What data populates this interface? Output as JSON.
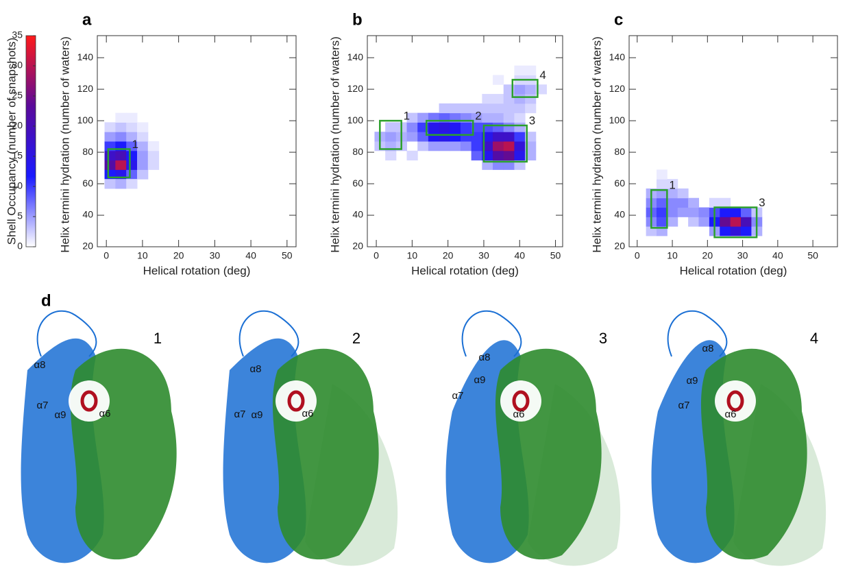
{
  "chart_data": [
    {
      "type": "heatmap",
      "title": "a",
      "xlabel": "Helical rotation (deg)",
      "ylabel": "Helix termini hydration (number of waters)",
      "xlim": [
        -2.5,
        52.5
      ],
      "ylim": [
        20,
        154
      ],
      "xticks": [
        0,
        10,
        20,
        30,
        40,
        50
      ],
      "yticks": [
        20,
        40,
        60,
        80,
        100,
        120,
        140
      ],
      "x": [
        1,
        4,
        7,
        10,
        1,
        4,
        7,
        10,
        13,
        1,
        4,
        7,
        10,
        13,
        1,
        4,
        7,
        10,
        13,
        1,
        4,
        7,
        10,
        1,
        4,
        7,
        10,
        4,
        7,
        1,
        4,
        7
      ],
      "y": [
        66,
        66,
        66,
        66,
        72,
        72,
        72,
        72,
        72,
        78,
        78,
        78,
        78,
        78,
        84,
        84,
        84,
        84,
        84,
        90,
        90,
        90,
        90,
        96,
        96,
        96,
        96,
        102,
        102,
        60,
        60,
        60
      ],
      "values": [
        12,
        14,
        8,
        3,
        22,
        30,
        14,
        5,
        2,
        18,
        20,
        12,
        5,
        2,
        10,
        12,
        8,
        4,
        1,
        5,
        6,
        4,
        2,
        2,
        3,
        2,
        1,
        1,
        1,
        3,
        4,
        2
      ],
      "box_color": "#2ca02c",
      "boxes": [
        {
          "label": "1",
          "x": [
            0.5,
            6.5
          ],
          "y": [
            64,
            82
          ]
        }
      ]
    },
    {
      "type": "heatmap",
      "title": "b",
      "xlabel": "Helical rotation (deg)",
      "ylabel": "Helix termini hydration (number of waters)",
      "xlim": [
        -2.5,
        52
      ],
      "ylim": [
        20,
        154
      ],
      "xticks": [
        0,
        10,
        20,
        30,
        40,
        50
      ],
      "yticks": [
        20,
        40,
        60,
        80,
        100,
        120,
        140
      ],
      "x": [
        31,
        34,
        37,
        40,
        4,
        10,
        28,
        31,
        34,
        37,
        40,
        43,
        1,
        4,
        7,
        13,
        16,
        19,
        22,
        25,
        28,
        31,
        34,
        37,
        40,
        43,
        1,
        4,
        7,
        10,
        13,
        16,
        19,
        22,
        25,
        28,
        31,
        34,
        37,
        40,
        43,
        4,
        7,
        10,
        13,
        16,
        19,
        22,
        25,
        28,
        31,
        34,
        37,
        40,
        10,
        13,
        16,
        19,
        22,
        25,
        28,
        31,
        34,
        37,
        40,
        19,
        22,
        25,
        28,
        31,
        34,
        37,
        40,
        43,
        31,
        34,
        37,
        40,
        43,
        37,
        40,
        43,
        46,
        34,
        40,
        43,
        40,
        43
      ],
      "y": [
        72,
        72,
        72,
        72,
        78,
        78,
        78,
        78,
        78,
        78,
        78,
        78,
        84,
        84,
        84,
        84,
        84,
        84,
        84,
        84,
        84,
        84,
        84,
        84,
        84,
        84,
        90,
        90,
        90,
        90,
        90,
        90,
        90,
        90,
        90,
        90,
        90,
        90,
        90,
        90,
        90,
        96,
        96,
        96,
        96,
        96,
        96,
        96,
        96,
        96,
        96,
        96,
        96,
        96,
        102,
        102,
        102,
        102,
        102,
        102,
        102,
        102,
        102,
        102,
        102,
        108,
        108,
        108,
        108,
        108,
        108,
        108,
        108,
        108,
        114,
        114,
        114,
        114,
        114,
        120,
        120,
        120,
        120,
        126,
        126,
        126,
        132,
        132
      ],
      "values": [
        4,
        6,
        6,
        3,
        2,
        2,
        8,
        14,
        22,
        24,
        14,
        4,
        3,
        4,
        3,
        3,
        5,
        5,
        5,
        6,
        10,
        18,
        28,
        30,
        16,
        4,
        4,
        5,
        4,
        5,
        8,
        13,
        14,
        12,
        10,
        10,
        14,
        18,
        18,
        10,
        3,
        3,
        3,
        6,
        10,
        14,
        15,
        13,
        10,
        9,
        9,
        8,
        6,
        4,
        3,
        5,
        7,
        8,
        7,
        6,
        5,
        4,
        4,
        3,
        2,
        3,
        3,
        3,
        3,
        3,
        3,
        3,
        3,
        2,
        2,
        2,
        3,
        4,
        3,
        3,
        5,
        4,
        2,
        1,
        2,
        2,
        1,
        1
      ],
      "box_color": "#2ca02c",
      "boxes": [
        {
          "label": "1",
          "x": [
            1,
            7
          ],
          "y": [
            82,
            100
          ]
        },
        {
          "label": "2",
          "x": [
            14,
            27
          ],
          "y": [
            91,
            100
          ]
        },
        {
          "label": "3",
          "x": [
            30,
            42
          ],
          "y": [
            74,
            97
          ]
        },
        {
          "label": "4",
          "x": [
            38,
            45
          ],
          "y": [
            115,
            126
          ]
        }
      ]
    },
    {
      "type": "heatmap",
      "title": "c",
      "xlabel": "Helical rotation (deg)",
      "ylabel": "Helix termini hydration (number of waters)",
      "xlim": [
        -2.3,
        57
      ],
      "ylim": [
        20,
        154
      ],
      "xticks": [
        0,
        10,
        20,
        30,
        40,
        50
      ],
      "yticks": [
        20,
        40,
        60,
        80,
        100,
        120,
        140
      ],
      "x": [
        4,
        7,
        22,
        25,
        28,
        31,
        34,
        4,
        7,
        10,
        16,
        19,
        22,
        25,
        28,
        31,
        34,
        4,
        7,
        10,
        13,
        16,
        19,
        22,
        25,
        28,
        31,
        34,
        4,
        7,
        10,
        13,
        16,
        22,
        25,
        4,
        7,
        10,
        13,
        7,
        10,
        7
      ],
      "y": [
        30,
        30,
        30,
        30,
        30,
        30,
        30,
        36,
        36,
        36,
        36,
        36,
        36,
        36,
        36,
        36,
        36,
        42,
        42,
        42,
        42,
        42,
        42,
        42,
        42,
        42,
        42,
        42,
        48,
        48,
        48,
        48,
        48,
        48,
        48,
        54,
        54,
        54,
        54,
        60,
        60,
        66
      ],
      "values": [
        3,
        4,
        5,
        12,
        16,
        12,
        4,
        6,
        9,
        4,
        3,
        5,
        12,
        24,
        30,
        20,
        6,
        8,
        10,
        6,
        5,
        5,
        6,
        9,
        12,
        12,
        8,
        3,
        6,
        8,
        6,
        6,
        4,
        2,
        2,
        4,
        5,
        4,
        3,
        2,
        2,
        1
      ],
      "box_color": "#2ca02c",
      "boxes": [
        {
          "label": "1",
          "x": [
            4,
            8.5
          ],
          "y": [
            32,
            56
          ]
        },
        {
          "label": "3",
          "x": [
            22,
            34
          ],
          "y": [
            26,
            45
          ]
        }
      ]
    }
  ],
  "colorbar": {
    "label": "Shell Occupancy (number of snapshots)",
    "lim": [
      0,
      35
    ],
    "ticks": [
      0,
      5,
      10,
      15,
      20,
      25,
      30,
      35
    ],
    "colors": [
      "#ffffff",
      "#1a1aff",
      "#5a0a9a",
      "#ff1a1a"
    ]
  },
  "panel_d": {
    "title": "d",
    "structures": [
      {
        "label": "1",
        "helices": [
          "α8",
          "α7",
          "α9",
          "α6"
        ]
      },
      {
        "label": "2",
        "helices": [
          "α8",
          "α7",
          "α9",
          "α6"
        ]
      },
      {
        "label": "3",
        "helices": [
          "α8",
          "α9",
          "α7",
          "α6"
        ]
      },
      {
        "label": "4",
        "helices": [
          "α8",
          "α9",
          "α7",
          "α6"
        ]
      }
    ]
  }
}
